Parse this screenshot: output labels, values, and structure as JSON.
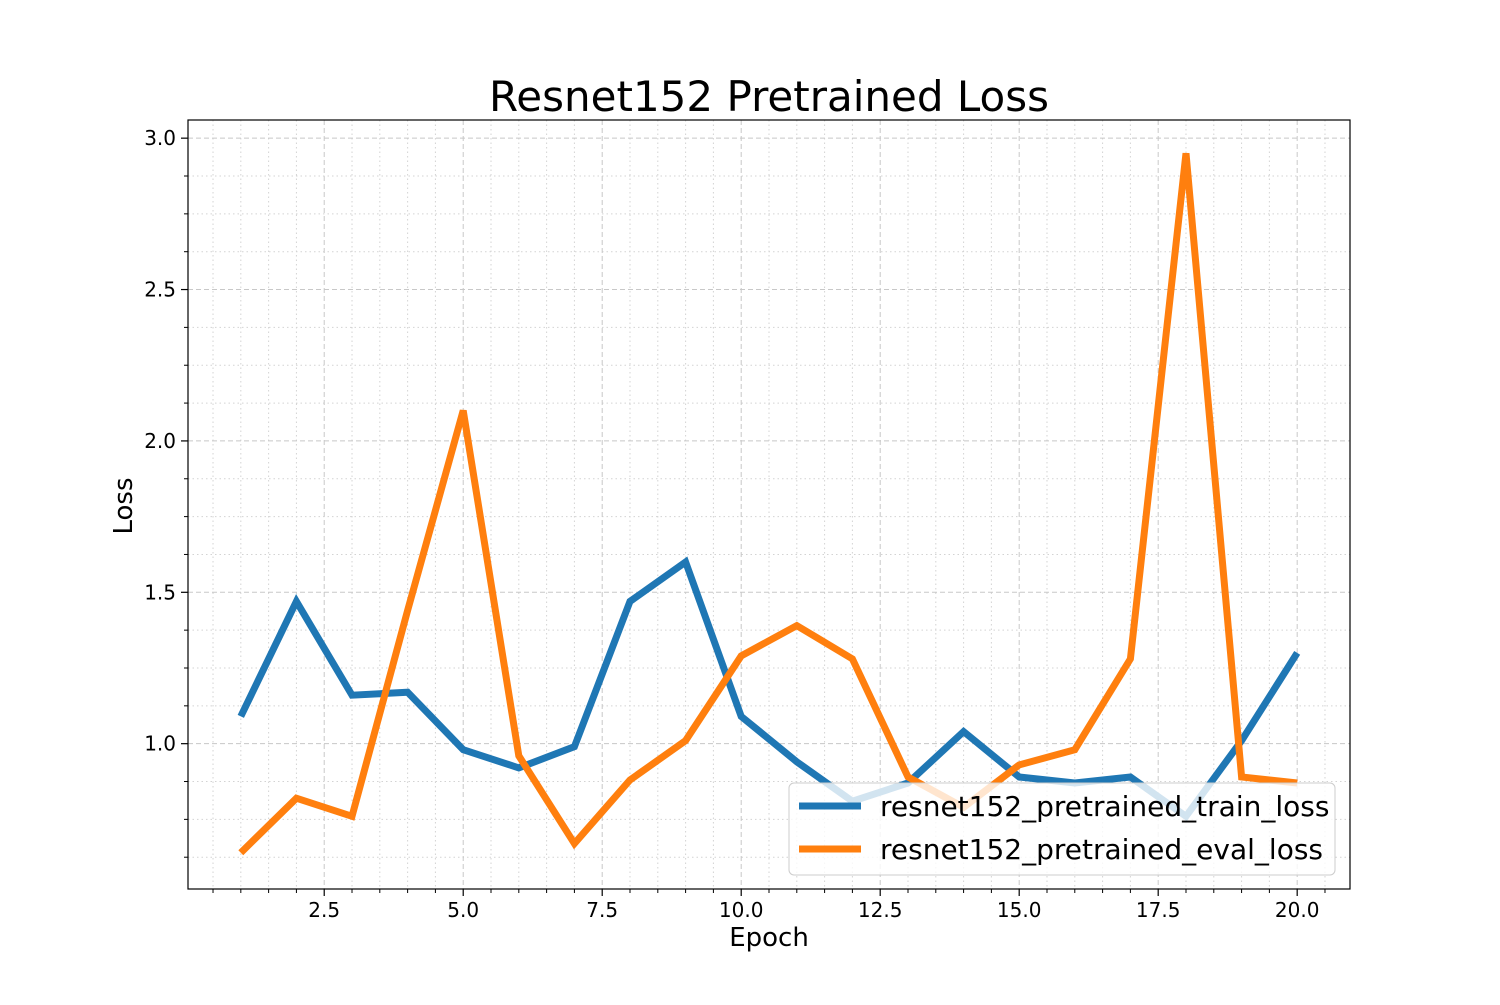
{
  "chart_data": {
    "type": "line",
    "title": "Resnet152 Pretrained Loss",
    "xlabel": "Epoch",
    "ylabel": "Loss",
    "xlim": [
      0.05,
      20.95
    ],
    "ylim": [
      0.52,
      3.06
    ],
    "xticks": [
      2.5,
      5.0,
      7.5,
      10.0,
      12.5,
      15.0,
      17.5,
      20.0
    ],
    "xtick_labels": [
      "2.5",
      "5.0",
      "7.5",
      "10.0",
      "12.5",
      "15.0",
      "17.5",
      "20.0"
    ],
    "yticks": [
      1.0,
      1.5,
      2.0,
      2.5,
      3.0
    ],
    "ytick_labels": [
      "1.0",
      "1.5",
      "2.0",
      "2.5",
      "3.0"
    ],
    "grid": true,
    "minor_grid": true,
    "legend_position": "bottom-right",
    "x": [
      1,
      2,
      3,
      4,
      5,
      6,
      7,
      8,
      9,
      10,
      11,
      12,
      13,
      14,
      15,
      16,
      17,
      18,
      19,
      20
    ],
    "series": [
      {
        "name": "resnet152_pretrained_train_loss",
        "color": "#1f77b4",
        "values": [
          1.09,
          1.47,
          1.16,
          1.17,
          0.98,
          0.92,
          0.99,
          1.47,
          1.6,
          1.09,
          0.94,
          0.81,
          0.87,
          1.04,
          0.89,
          0.87,
          0.89,
          0.76,
          1.01,
          1.3
        ]
      },
      {
        "name": "resnet152_pretrained_eval_loss",
        "color": "#ff7f0e",
        "values": [
          0.64,
          0.82,
          0.76,
          1.44,
          2.1,
          0.96,
          0.67,
          0.88,
          1.01,
          1.29,
          1.39,
          1.28,
          0.89,
          0.79,
          0.93,
          0.98,
          1.28,
          2.95,
          0.89,
          0.87
        ]
      }
    ]
  }
}
